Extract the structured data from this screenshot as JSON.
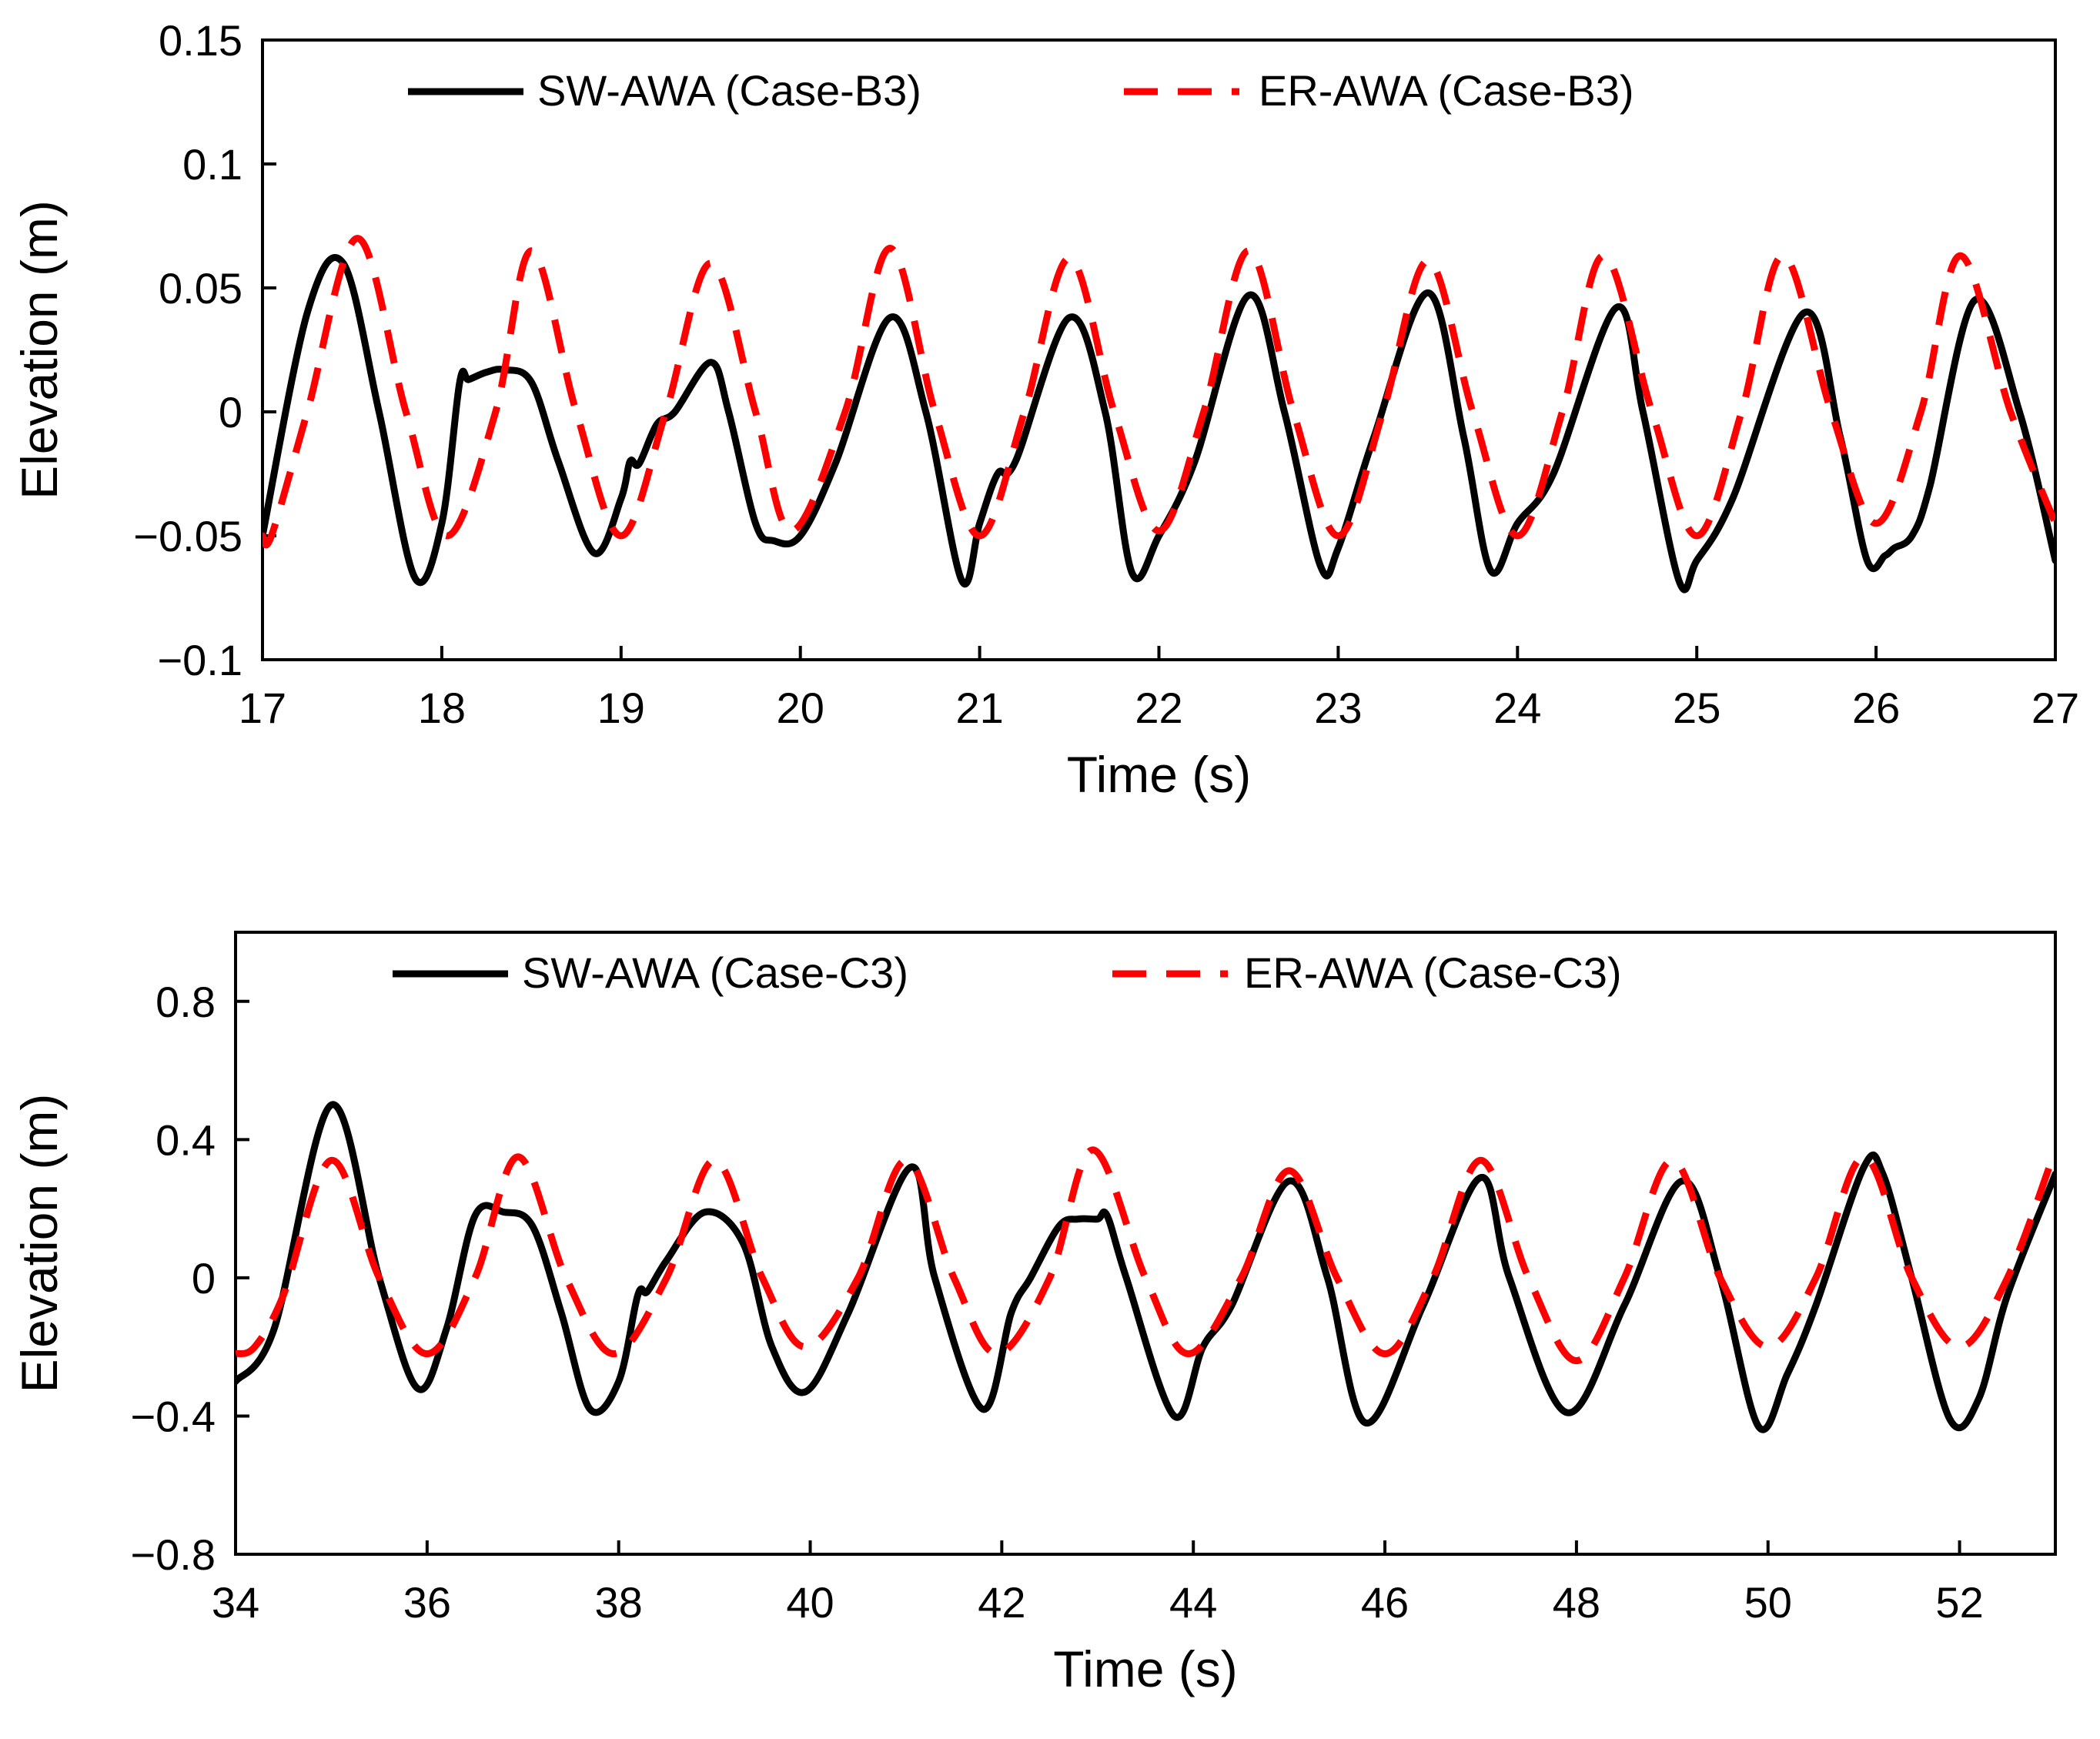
{
  "chart_data": [
    {
      "type": "line",
      "xlabel": "Time (s)",
      "ylabel": "Elevation (m)",
      "xlim": [
        17,
        27
      ],
      "ylim": [
        -0.1,
        0.15
      ],
      "xticks": [
        "17",
        "18",
        "19",
        "20",
        "21",
        "22",
        "23",
        "24",
        "25",
        "26",
        "27"
      ],
      "yticks": [
        "0.15",
        "0.1",
        "0.05",
        "0",
        "−0.05",
        "−0.1"
      ],
      "ytick_values": [
        0.15,
        0.1,
        0.05,
        0,
        -0.05,
        -0.1
      ],
      "grid": false,
      "legend_position": "top",
      "series": [
        {
          "name": "SW-AWA (Case-B3)",
          "color": "#000000",
          "style": "solid",
          "x": [
            17.0,
            17.25,
            17.45,
            17.65,
            17.85,
            18.0,
            18.1,
            18.15,
            18.25,
            18.35,
            18.5,
            18.65,
            18.85,
            19.0,
            19.05,
            19.1,
            19.2,
            19.3,
            19.5,
            19.6,
            19.75,
            19.85,
            20.0,
            20.2,
            20.5,
            20.7,
            20.9,
            21.0,
            21.1,
            21.2,
            21.5,
            21.7,
            21.85,
            22.0,
            22.2,
            22.5,
            22.7,
            22.9,
            23.0,
            23.2,
            23.5,
            23.7,
            23.85,
            24.0,
            24.2,
            24.55,
            24.7,
            24.9,
            25.0,
            25.2,
            25.6,
            25.8,
            25.95,
            26.05,
            26.1,
            26.2,
            26.3,
            26.55,
            26.8,
            27.0
          ],
          "values": [
            -0.05,
            0.04,
            0.06,
            0.0,
            -0.067,
            -0.045,
            0.012,
            0.013,
            0.016,
            0.017,
            0.012,
            -0.02,
            -0.057,
            -0.035,
            -0.02,
            -0.021,
            -0.005,
            0.0,
            0.02,
            0.0,
            -0.045,
            -0.052,
            -0.05,
            -0.02,
            0.038,
            0.0,
            -0.068,
            -0.045,
            -0.025,
            -0.02,
            0.038,
            0.0,
            -0.065,
            -0.05,
            -0.02,
            0.047,
            0.0,
            -0.062,
            -0.055,
            -0.01,
            0.048,
            -0.01,
            -0.064,
            -0.045,
            -0.025,
            0.042,
            0.0,
            -0.068,
            -0.06,
            -0.035,
            0.04,
            -0.01,
            -0.06,
            -0.058,
            -0.055,
            -0.05,
            -0.03,
            0.045,
            0.0,
            -0.06
          ]
        },
        {
          "name": "ER-AWA (Case-B3)",
          "color": "#ff0000",
          "style": "dashed",
          "x": [
            17.0,
            17.05,
            17.25,
            17.53,
            17.8,
            18.03,
            18.3,
            18.5,
            18.75,
            19.0,
            19.25,
            19.5,
            19.75,
            19.95,
            20.25,
            20.5,
            20.75,
            21.0,
            21.25,
            21.5,
            21.75,
            22.0,
            22.25,
            22.5,
            22.75,
            23.0,
            23.25,
            23.5,
            23.75,
            24.0,
            24.25,
            24.48,
            24.75,
            25.0,
            25.25,
            25.48,
            25.75,
            26.0,
            26.25,
            26.47,
            26.75,
            27.0
          ],
          "values": [
            -0.05,
            -0.05,
            0.0,
            0.07,
            0.0,
            -0.05,
            0.0,
            0.065,
            0.0,
            -0.05,
            0.0,
            0.06,
            0.0,
            -0.048,
            0.0,
            0.066,
            0.0,
            -0.05,
            0.0,
            0.062,
            0.0,
            -0.048,
            0.0,
            0.065,
            0.0,
            -0.05,
            0.0,
            0.061,
            0.0,
            -0.05,
            0.0,
            0.063,
            0.0,
            -0.05,
            0.0,
            0.063,
            0.0,
            -0.045,
            0.0,
            0.063,
            0.0,
            -0.045
          ]
        }
      ]
    },
    {
      "type": "line",
      "xlabel": "Time (s)",
      "ylabel": "Elevation (m)",
      "xlim": [
        34,
        53
      ],
      "ylim": [
        -0.8,
        1.0
      ],
      "xticks": [
        "34",
        "36",
        "38",
        "40",
        "42",
        "44",
        "46",
        "48",
        "50",
        "52"
      ],
      "xtick_values": [
        34,
        36,
        38,
        40,
        42,
        44,
        46,
        48,
        50,
        52
      ],
      "yticks": [
        "0.8",
        "0.4",
        "0",
        "−0.4",
        "−0.8"
      ],
      "ytick_values": [
        0.8,
        0.4,
        0,
        -0.4,
        -0.8
      ],
      "grid": false,
      "legend_position": "top",
      "series": [
        {
          "name": "SW-AWA (Case-C3)",
          "color": "#000000",
          "style": "solid",
          "x": [
            34.0,
            34.4,
            35.0,
            35.5,
            35.9,
            36.2,
            36.5,
            36.8,
            37.1,
            37.4,
            37.7,
            38.0,
            38.2,
            38.3,
            38.5,
            38.9,
            39.3,
            39.6,
            39.95,
            40.4,
            41.05,
            41.3,
            41.8,
            42.1,
            42.3,
            42.6,
            42.8,
            43.0,
            43.1,
            43.3,
            43.8,
            44.1,
            44.4,
            45.0,
            45.4,
            45.8,
            46.4,
            47.0,
            47.3,
            47.9,
            48.5,
            49.1,
            49.5,
            49.9,
            50.2,
            50.5,
            51.0,
            51.2,
            51.5,
            51.9,
            52.2,
            52.5,
            53.0
          ],
          "values": [
            -0.3,
            -0.15,
            0.5,
            0.0,
            -0.32,
            -0.15,
            0.18,
            0.19,
            0.15,
            -0.1,
            -0.38,
            -0.3,
            -0.05,
            -0.04,
            0.05,
            0.19,
            0.1,
            -0.2,
            -0.33,
            -0.1,
            0.32,
            0.0,
            -0.38,
            -0.1,
            0.0,
            0.15,
            0.17,
            0.17,
            0.18,
            0.0,
            -0.4,
            -0.2,
            -0.08,
            0.28,
            0.0,
            -0.42,
            -0.08,
            0.29,
            0.0,
            -0.39,
            -0.08,
            0.28,
            0.0,
            -0.43,
            -0.28,
            -0.08,
            0.32,
            0.3,
            0.0,
            -0.41,
            -0.35,
            -0.05,
            0.3
          ]
        },
        {
          "name": "ER-AWA (Case-C3)",
          "color": "#ff0000",
          "style": "dashed",
          "x": [
            34.0,
            34.2,
            34.5,
            35.0,
            35.5,
            36.0,
            36.5,
            36.95,
            37.45,
            37.95,
            38.5,
            39.0,
            39.5,
            39.95,
            40.5,
            41.0,
            41.5,
            41.95,
            42.5,
            42.95,
            43.5,
            43.95,
            44.5,
            45.0,
            45.5,
            46.0,
            46.5,
            47.0,
            47.5,
            48.0,
            48.5,
            49.0,
            49.5,
            50.0,
            50.5,
            51.0,
            51.5,
            52.0,
            52.5,
            53.0
          ],
          "values": [
            -0.22,
            -0.2,
            -0.05,
            0.34,
            0.0,
            -0.22,
            0.0,
            0.35,
            0.0,
            -0.22,
            0.0,
            0.34,
            0.0,
            -0.2,
            0.0,
            0.34,
            0.0,
            -0.22,
            0.0,
            0.37,
            0.0,
            -0.22,
            0.0,
            0.31,
            0.0,
            -0.22,
            0.0,
            0.34,
            0.0,
            -0.24,
            0.0,
            0.34,
            0.0,
            -0.2,
            0.0,
            0.35,
            0.0,
            -0.2,
            0.0,
            0.37
          ]
        }
      ]
    }
  ]
}
